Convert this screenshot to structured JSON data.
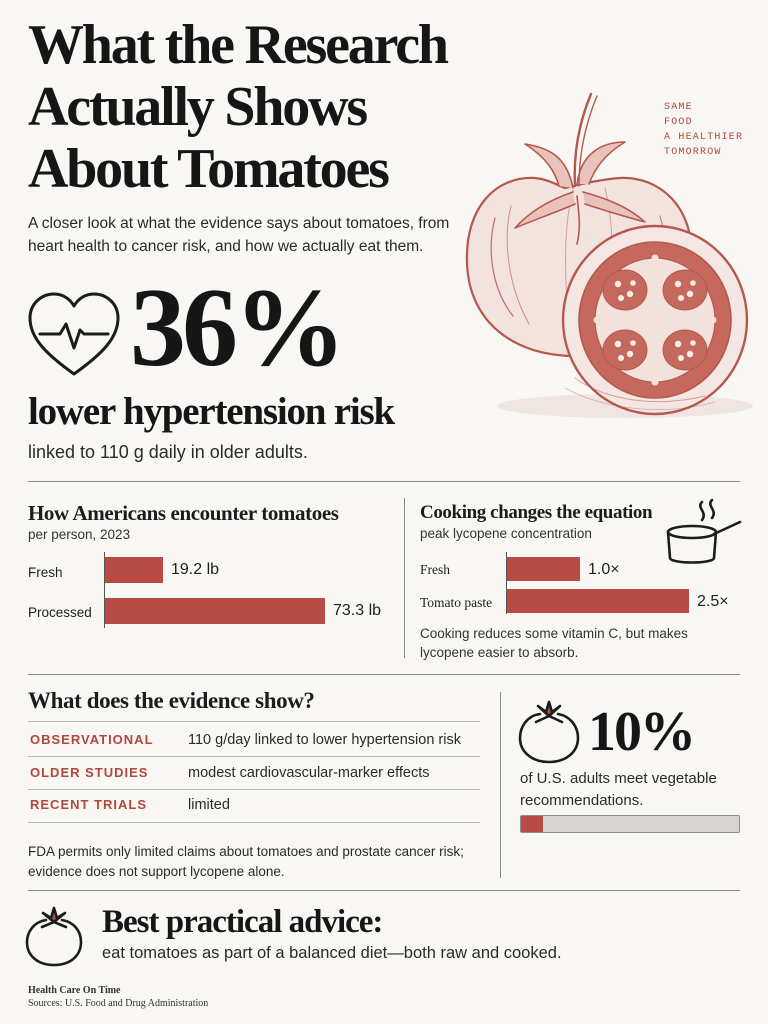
{
  "header": {
    "title_lines": [
      "What the Research",
      "Actually Shows",
      "About Tomatoes"
    ],
    "subtitle": "A closer look at what the evidence says about tomatoes, from heart health to cancer risk, and how we actually eat them.",
    "tagline_lines": [
      "SAME",
      "FOOD",
      "A HEALTHIER",
      "TOMORROW"
    ]
  },
  "icons": {
    "heart": "heart-pulse-icon",
    "pot": "cooking-pot-icon",
    "tomato": "tomato-icon"
  },
  "hero_stat": {
    "value": "36%",
    "label": "lower hypertension risk",
    "note": "linked to 110 g daily in older adults."
  },
  "consumption": {
    "title": "How Americans encounter tomatoes",
    "subtitle": "per person, 2023",
    "items": [
      {
        "label": "Fresh",
        "value": 19.2,
        "display": "19.2 lb"
      },
      {
        "label": "Processed",
        "value": 73.3,
        "display": "73.3 lb"
      }
    ]
  },
  "cooking": {
    "title": "Cooking changes the equation",
    "subtitle": "peak lycopene concentration",
    "items": [
      {
        "label": "Fresh",
        "value": 1.0,
        "display": "1.0×"
      },
      {
        "label": "Tomato paste",
        "value": 2.5,
        "display": "2.5×"
      }
    ],
    "note": "Cooking reduces some vitamin C, but makes lycopene easier to absorb."
  },
  "evidence": {
    "title": "What does the evidence show?",
    "rows": [
      {
        "label": "OBSERVATIONAL",
        "value": "110 g/day linked to lower hypertension risk"
      },
      {
        "label": "OLDER STUDIES",
        "value": "modest cardiovascular-marker effects"
      },
      {
        "label": "RECENT TRIALS",
        "value": "limited"
      }
    ],
    "note": "FDA permits only limited claims about tomatoes and prostate cancer risk; evidence does not support lycopene alone."
  },
  "veg_stat": {
    "value": "10%",
    "label": "of U.S. adults meet vegetable recommendations.",
    "fraction": 0.1
  },
  "advice": {
    "title": "Best practical advice:",
    "text": "eat tomatoes as part of a balanced diet—both raw and cooked."
  },
  "footer": {
    "brand": "Health Care On Time",
    "sources": "Sources: U.S. Food and Drug Administration"
  },
  "colors": {
    "accent": "#b84c42",
    "label_red": "#b2473d",
    "ink": "#161616",
    "illustration": "#b5584e",
    "track": "#d7d5d1"
  }
}
